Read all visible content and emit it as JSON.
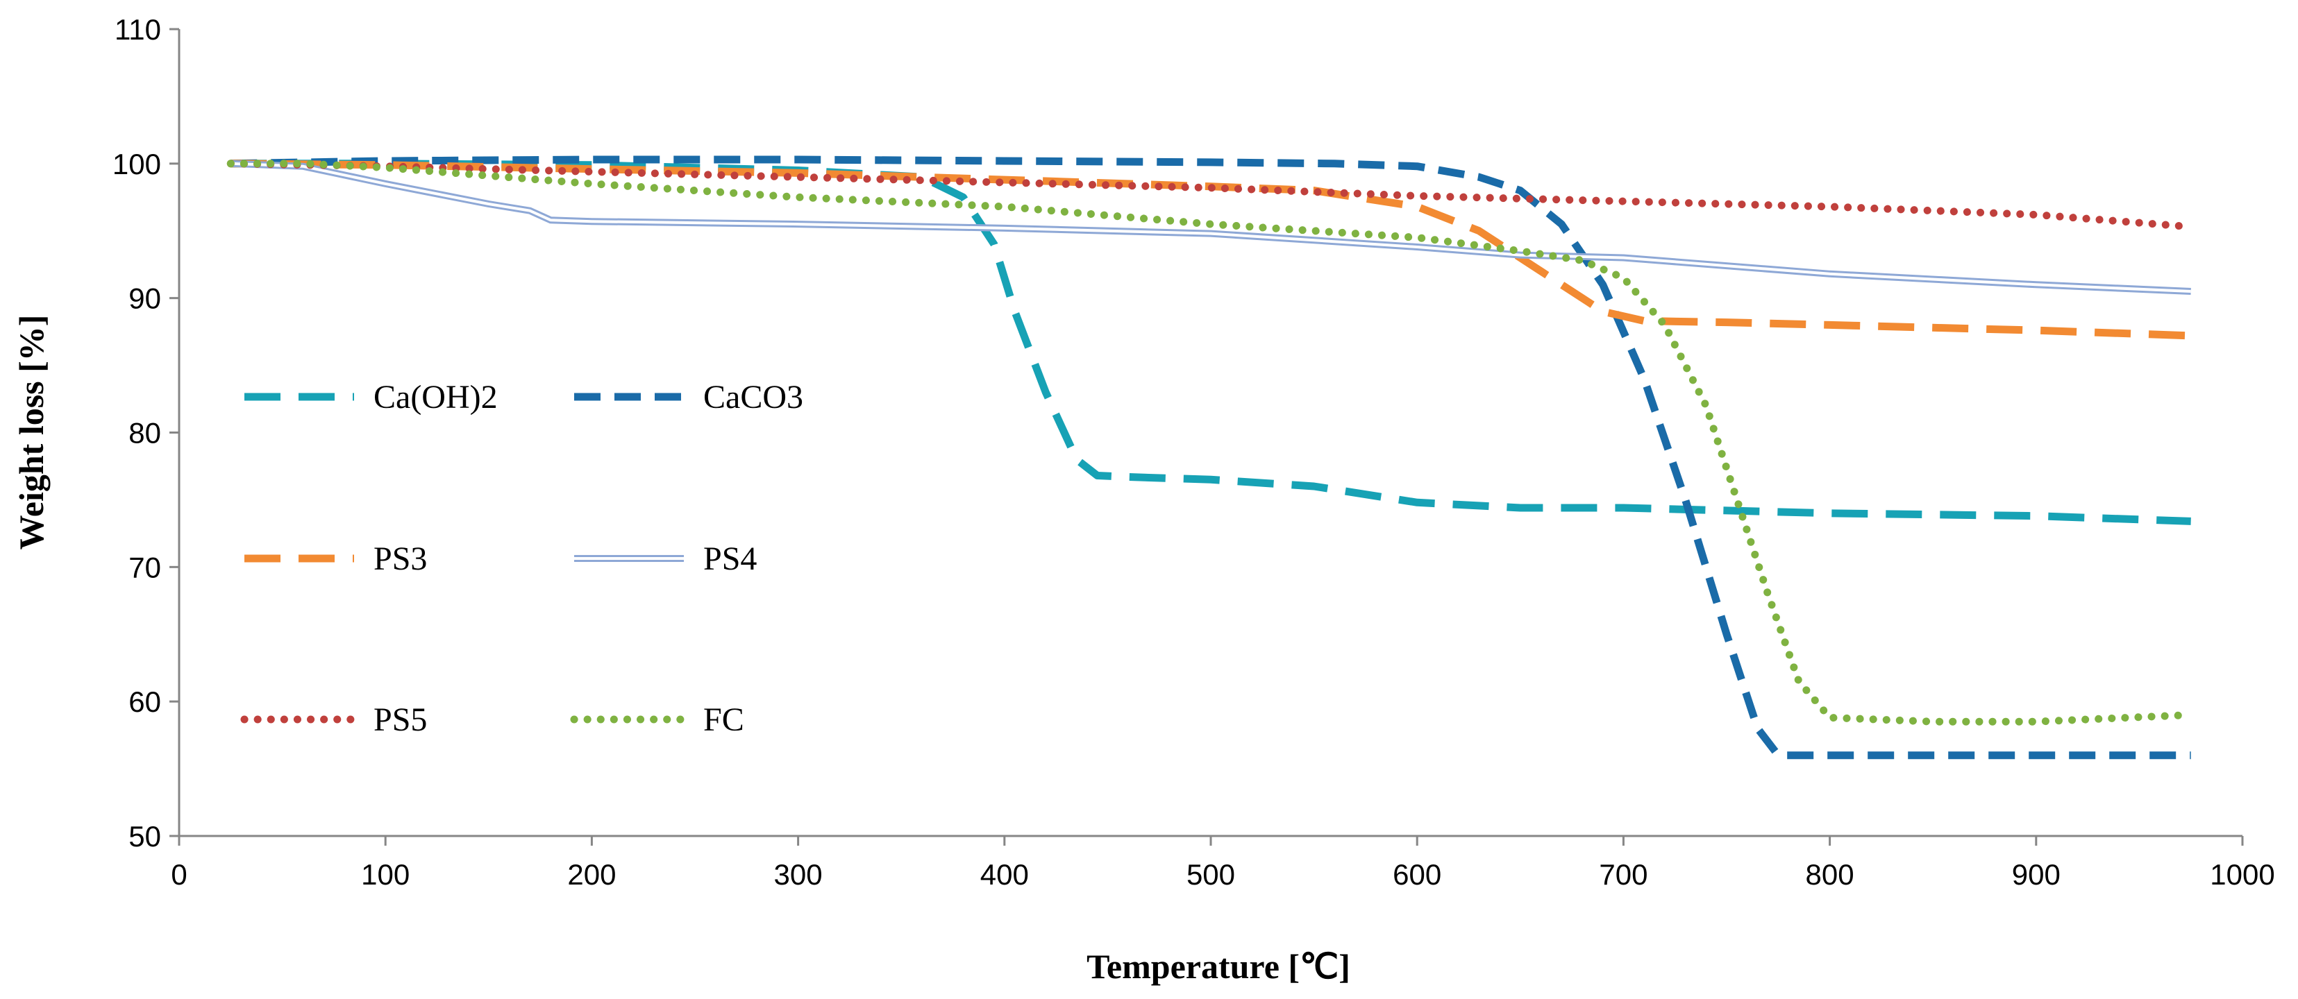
{
  "chart_data": {
    "type": "line",
    "title": "",
    "xlabel": "Temperature [℃]",
    "ylabel": "Weight loss [%]",
    "xlim": [
      0,
      1000
    ],
    "ylim": [
      50,
      110
    ],
    "xticks": [
      "0",
      "100",
      "200",
      "300",
      "400",
      "500",
      "600",
      "700",
      "800",
      "900",
      "1000"
    ],
    "yticks": [
      "50",
      "60",
      "70",
      "80",
      "90",
      "100",
      "110"
    ],
    "grid": false,
    "legend_position": "left-center",
    "series": [
      {
        "name": "Ca(OH)2",
        "color": "#17A2B5",
        "style": "long-dash",
        "x": [
          25,
          100,
          200,
          300,
          360,
          380,
          395,
          405,
          420,
          435,
          445,
          460,
          500,
          550,
          600,
          650,
          700,
          800,
          900,
          975
        ],
        "y": [
          100,
          100,
          99.9,
          99.5,
          99.0,
          97.5,
          94,
          89,
          83,
          78,
          76.8,
          76.7,
          76.5,
          76.0,
          74.8,
          74.4,
          74.4,
          74.0,
          73.8,
          73.4
        ]
      },
      {
        "name": "CaCO3",
        "color": "#1A6BA8",
        "style": "dash",
        "x": [
          25,
          100,
          200,
          300,
          400,
          500,
          560,
          600,
          630,
          650,
          670,
          690,
          710,
          730,
          750,
          765,
          775,
          800,
          900,
          975
        ],
        "y": [
          100,
          100.2,
          100.3,
          100.3,
          100.2,
          100.1,
          100,
          99.8,
          99,
          98,
          95.5,
          91,
          84,
          75,
          65,
          58,
          56.0,
          56.0,
          56.0,
          56.0
        ]
      },
      {
        "name": "PS3",
        "color": "#F28A32",
        "style": "long-dash",
        "x": [
          25,
          100,
          200,
          300,
          400,
          500,
          550,
          600,
          630,
          660,
          690,
          710,
          750,
          800,
          900,
          975
        ],
        "y": [
          100,
          99.9,
          99.6,
          99.3,
          98.8,
          98.3,
          98.0,
          96.8,
          95,
          92,
          89,
          88.3,
          88.2,
          88.0,
          87.6,
          87.2
        ]
      },
      {
        "name": "PS4",
        "color": "#8EA8D6",
        "style": "double",
        "x": [
          25,
          60,
          100,
          150,
          170,
          180,
          200,
          300,
          400,
          500,
          600,
          650,
          700,
          800,
          900,
          975
        ],
        "y": [
          100,
          99.8,
          98.5,
          97.0,
          96.5,
          95.8,
          95.7,
          95.5,
          95.2,
          94.8,
          93.8,
          93.2,
          93.0,
          91.8,
          91.0,
          90.5
        ]
      },
      {
        "name": "PS5",
        "color": "#C0403C",
        "style": "dot",
        "x": [
          25,
          100,
          200,
          300,
          400,
          500,
          600,
          700,
          800,
          900,
          975
        ],
        "y": [
          100,
          99.8,
          99.4,
          99.0,
          98.6,
          98.2,
          97.6,
          97.2,
          96.8,
          96.2,
          95.3
        ]
      },
      {
        "name": "FC",
        "color": "#7FB241",
        "style": "dot",
        "x": [
          25,
          60,
          100,
          200,
          300,
          400,
          500,
          600,
          650,
          680,
          700,
          720,
          740,
          755,
          770,
          785,
          800,
          850,
          900,
          975
        ],
        "y": [
          100,
          100,
          99.7,
          98.5,
          97.5,
          96.8,
          95.5,
          94.5,
          93.5,
          92.8,
          91.5,
          88,
          82,
          75,
          68,
          61.5,
          58.8,
          58.5,
          58.5,
          59.0
        ]
      }
    ]
  }
}
